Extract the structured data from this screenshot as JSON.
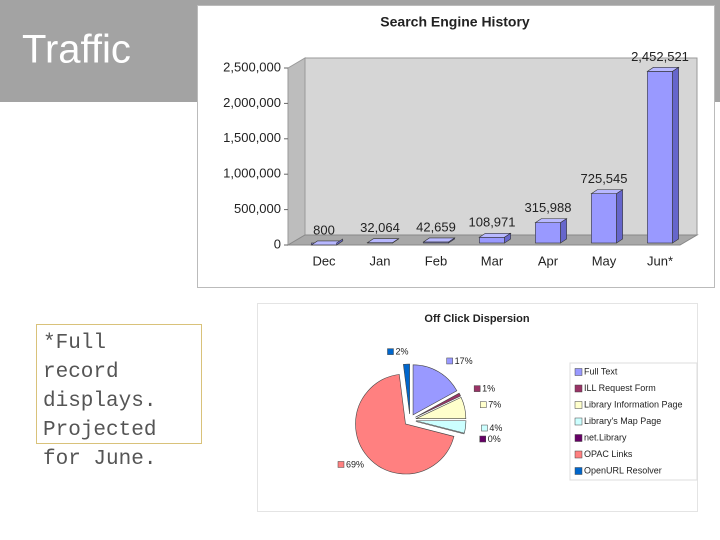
{
  "slide": {
    "title": "Traffic",
    "note": "*Full record displays. Projected for June."
  },
  "chart_data": [
    {
      "type": "bar3d",
      "title": "Search Engine History",
      "categories": [
        "Dec",
        "Jan",
        "Feb",
        "Mar",
        "Apr",
        "May",
        "Jun*"
      ],
      "values": [
        800,
        32064,
        42659,
        108971,
        315988,
        725545,
        2452521
      ],
      "value_labels": [
        "800",
        "32,064",
        "42,659",
        "108,971",
        "315,988",
        "725,545",
        "2,452,521"
      ],
      "color": "#9999ff",
      "ylim": [
        0,
        2500000
      ],
      "yticks": [
        0,
        {
          "value": 500000,
          "label": "500,000"
        },
        {
          "value": 1000000,
          "label": "1,000,000"
        },
        {
          "value": 1500000,
          "label": "1,500,000"
        },
        {
          "value": 2000000,
          "label": "2,000,000"
        },
        {
          "value": 2500000,
          "label": "2,500,000"
        }
      ]
    },
    {
      "type": "pie",
      "title": "Off Click Dispersion",
      "categories": [
        "Full Text",
        "ILL Request Form",
        "Library Information Page",
        "Library's Map Page",
        "net.Library",
        "OPAC Links",
        "OpenURL Resolver"
      ],
      "values": [
        17,
        1,
        7,
        4,
        0,
        69,
        2
      ],
      "value_labels": [
        "17%",
        "1%",
        "7%",
        "4%",
        "0%",
        "69%",
        "2%"
      ],
      "colors": [
        "#9999ff",
        "#993366",
        "#ffffcc",
        "#ccffff",
        "#660066",
        "#ff8080",
        "#0066cc"
      ],
      "legend": "right"
    }
  ]
}
